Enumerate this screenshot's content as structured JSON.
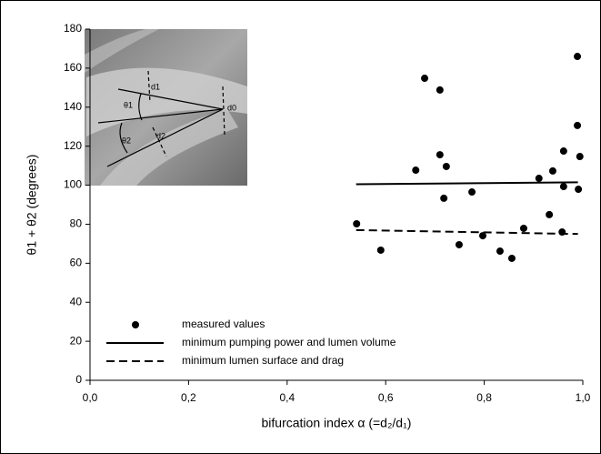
{
  "chart_data": {
    "type": "scatter",
    "xlabel": "bifurcation index α (=d₂/d₁)",
    "ylabel": "θ1 + θ2 (degrees)",
    "xlim": [
      0,
      1
    ],
    "ylim": [
      0,
      180
    ],
    "xticks": [
      {
        "value": 0,
        "label": "0,0"
      },
      {
        "value": 0.2,
        "label": "0,2"
      },
      {
        "value": 0.4,
        "label": "0,4"
      },
      {
        "value": 0.6,
        "label": "0,6"
      },
      {
        "value": 0.8,
        "label": "0,8"
      },
      {
        "value": 1,
        "label": "1,0"
      }
    ],
    "yticks": [
      0,
      20,
      40,
      60,
      80,
      100,
      120,
      140,
      160,
      180
    ],
    "legend": "lower left",
    "inset_labels": [
      "d1",
      "d0",
      "θ1",
      "θ2",
      "d2"
    ],
    "series": [
      {
        "name": "measured values",
        "type": "scatter",
        "color": "#000000",
        "x": [
          0.541,
          0.59,
          0.661,
          0.679,
          0.71,
          0.71,
          0.723,
          0.718,
          0.749,
          0.775,
          0.797,
          0.832,
          0.856,
          0.88,
          0.911,
          0.932,
          0.939,
          0.958,
          0.961,
          0.961,
          0.989,
          0.989,
          0.994,
          0.991
        ],
        "values": [
          80.2,
          66.7,
          107.7,
          154.8,
          148.8,
          115.6,
          109.6,
          93.3,
          69.5,
          96.5,
          74.1,
          66.2,
          62.5,
          77.9,
          103.5,
          84.9,
          107.3,
          76.0,
          117.5,
          99.3,
          166.0,
          130.6,
          114.7,
          97.9
        ]
      },
      {
        "name": "minimum pumping power and lumen volume",
        "type": "line",
        "color": "#000000",
        "dashed": false,
        "x": [
          0.54,
          0.99
        ],
        "values": [
          100.5,
          101.5
        ]
      },
      {
        "name": "minimum lumen surface and drag",
        "type": "line",
        "color": "#000000",
        "dashed": true,
        "x": [
          0.54,
          0.99
        ],
        "values": [
          77,
          75
        ]
      }
    ]
  }
}
